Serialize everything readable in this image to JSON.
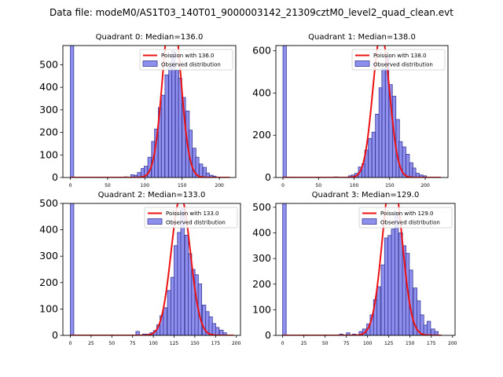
{
  "figure": {
    "suptitle": "Data file: modeM0/AS1T03_140T01_9000003142_21309cztM0_level2_quad_clean.evt"
  },
  "colors": {
    "bar_fill": "#7b7bea",
    "bar_edge": "#3a3a9a",
    "curve": "#ee1111"
  },
  "chart_data": [
    {
      "type": "bar",
      "title": "Quadrant 0: Median=136.0",
      "xlim": [
        -10,
        222
      ],
      "ylim": [
        0,
        585
      ],
      "xticks": [
        0,
        50,
        100,
        150,
        200
      ],
      "yticks": [
        0,
        100,
        200,
        300,
        400,
        500
      ],
      "bin_width": 4.6,
      "bins": [
        [
          0,
          585
        ],
        [
          72,
          3
        ],
        [
          81,
          12
        ],
        [
          86,
          10
        ],
        [
          90,
          22
        ],
        [
          95,
          40
        ],
        [
          99,
          50
        ],
        [
          104,
          90
        ],
        [
          109,
          160
        ],
        [
          113,
          215
        ],
        [
          118,
          310
        ],
        [
          122,
          365
        ],
        [
          127,
          455
        ],
        [
          132,
          490
        ],
        [
          136,
          560
        ],
        [
          141,
          475
        ],
        [
          145,
          440
        ],
        [
          150,
          355
        ],
        [
          155,
          295
        ],
        [
          159,
          210
        ],
        [
          164,
          130
        ],
        [
          168,
          90
        ],
        [
          173,
          60
        ],
        [
          178,
          45
        ],
        [
          182,
          20
        ],
        [
          187,
          10
        ],
        [
          191,
          6
        ]
      ],
      "curve": {
        "label": "Poission with 136.0",
        "mean": 136.0,
        "x_range": [
          0,
          214
        ]
      },
      "legend": {
        "bars_label": "Observed distribution",
        "position": "top-right"
      }
    },
    {
      "type": "bar",
      "title": "Quadrant 1: Median=138.0",
      "xlim": [
        -10,
        232
      ],
      "ylim": [
        0,
        625
      ],
      "xticks": [
        0,
        50,
        100,
        150,
        200
      ],
      "yticks": [
        0,
        200,
        400,
        600
      ],
      "bin_width": 4.8,
      "bins": [
        [
          0,
          625
        ],
        [
          72,
          3
        ],
        [
          92,
          8
        ],
        [
          96,
          12
        ],
        [
          101,
          20
        ],
        [
          106,
          50
        ],
        [
          111,
          65
        ],
        [
          115,
          130
        ],
        [
          120,
          185
        ],
        [
          125,
          215
        ],
        [
          130,
          300
        ],
        [
          135,
          425
        ],
        [
          139,
          515
        ],
        [
          144,
          575
        ],
        [
          149,
          440
        ],
        [
          154,
          385
        ],
        [
          159,
          275
        ],
        [
          163,
          170
        ],
        [
          168,
          145
        ],
        [
          173,
          110
        ],
        [
          178,
          70
        ],
        [
          182,
          45
        ],
        [
          187,
          20
        ],
        [
          192,
          12
        ],
        [
          197,
          8
        ]
      ],
      "curve": {
        "label": "Poission with 138.0",
        "mean": 138.0,
        "x_range": [
          0,
          222
        ]
      },
      "legend": {
        "bars_label": "Observed distribution",
        "position": "top-right"
      }
    },
    {
      "type": "bar",
      "title": "Quadrant 2: Median=133.0",
      "xlim": [
        -9,
        205
      ],
      "ylim": [
        0,
        500
      ],
      "xticks": [
        0,
        25,
        50,
        75,
        100,
        125,
        150,
        175,
        200
      ],
      "yticks": [
        0,
        100,
        200,
        300,
        400,
        500
      ],
      "bin_width": 4.2,
      "bins": [
        [
          0,
          500
        ],
        [
          79,
          15
        ],
        [
          87,
          5
        ],
        [
          92,
          5
        ],
        [
          96,
          10
        ],
        [
          100,
          18
        ],
        [
          104,
          40
        ],
        [
          108,
          75
        ],
        [
          112,
          105
        ],
        [
          117,
          170
        ],
        [
          121,
          220
        ],
        [
          125,
          340
        ],
        [
          129,
          390
        ],
        [
          133,
          480
        ],
        [
          138,
          380
        ],
        [
          142,
          310
        ],
        [
          146,
          250
        ],
        [
          150,
          230
        ],
        [
          154,
          195
        ],
        [
          159,
          115
        ],
        [
          163,
          90
        ],
        [
          167,
          70
        ],
        [
          171,
          45
        ],
        [
          175,
          30
        ],
        [
          180,
          20
        ],
        [
          184,
          10
        ]
      ],
      "curve": {
        "label": "Poission with 133.0",
        "mean": 133.0,
        "x_range": [
          0,
          197
        ]
      },
      "legend": {
        "bars_label": "Observed distribution",
        "position": "top-right"
      }
    },
    {
      "type": "bar",
      "title": "Quadrant 3: Median=129.0",
      "xlim": [
        -8,
        203
      ],
      "ylim": [
        0,
        515
      ],
      "xticks": [
        0,
        25,
        50,
        75,
        100,
        125,
        150,
        175,
        200
      ],
      "yticks": [
        0,
        100,
        200,
        300,
        400,
        500
      ],
      "bin_width": 4.2,
      "bins": [
        [
          0,
          515
        ],
        [
          67,
          5
        ],
        [
          75,
          10
        ],
        [
          82,
          5
        ],
        [
          90,
          15
        ],
        [
          94,
          25
        ],
        [
          99,
          45
        ],
        [
          103,
          80
        ],
        [
          107,
          140
        ],
        [
          111,
          190
        ],
        [
          116,
          275
        ],
        [
          120,
          380
        ],
        [
          124,
          390
        ],
        [
          128,
          415
        ],
        [
          132,
          480
        ],
        [
          137,
          400
        ],
        [
          141,
          350
        ],
        [
          145,
          320
        ],
        [
          149,
          255
        ],
        [
          154,
          185
        ],
        [
          158,
          135
        ],
        [
          162,
          80
        ],
        [
          166,
          40
        ],
        [
          170,
          55
        ],
        [
          175,
          25
        ],
        [
          179,
          15
        ]
      ],
      "curve": {
        "label": "Poission with 129.0",
        "mean": 129.0,
        "x_range": [
          0,
          187
        ]
      },
      "legend": {
        "bars_label": "Observed distribution",
        "position": "top-right"
      }
    }
  ]
}
